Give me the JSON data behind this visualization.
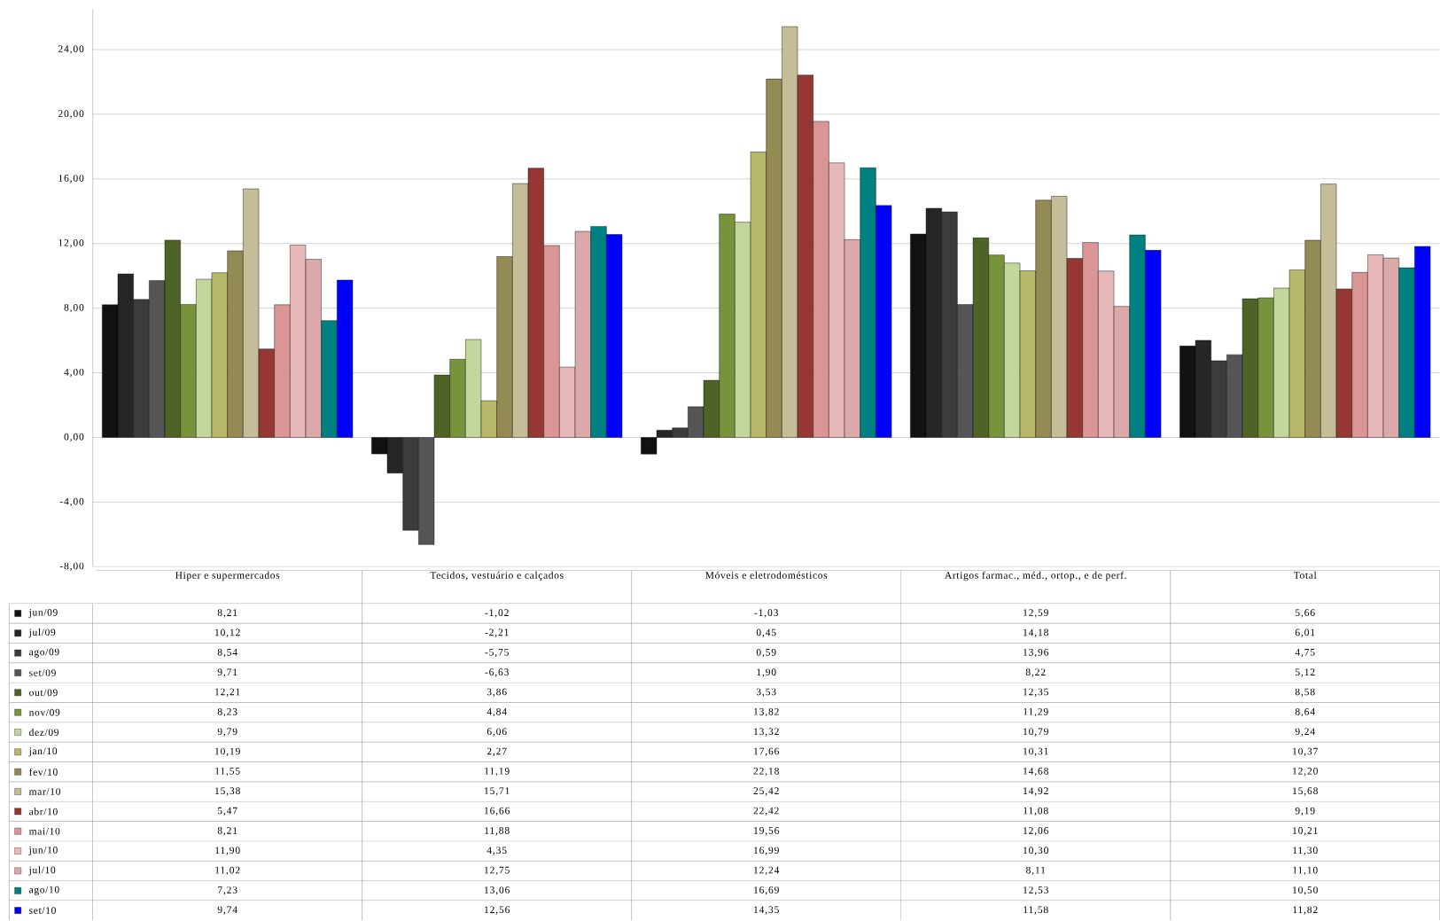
{
  "chart_data": {
    "type": "bar",
    "categories": [
      "Hiper e supermercados",
      "Tecidos, vestuário e calçados",
      "Móveis e eletrodomésticos",
      "Artigos farmac., méd., ortop., e de perf.",
      "Total"
    ],
    "ylim": [
      -8,
      26.5
    ],
    "yticks": [
      {
        "value": -8,
        "label": "-8,00"
      },
      {
        "value": -4,
        "label": "-4,00"
      },
      {
        "value": 0,
        "label": "0,00"
      },
      {
        "value": 4,
        "label": "4,00"
      },
      {
        "value": 8,
        "label": "8,00"
      },
      {
        "value": 12,
        "label": "12,00"
      },
      {
        "value": 16,
        "label": "16,00"
      },
      {
        "value": 20,
        "label": "20,00"
      },
      {
        "value": 24,
        "label": "24,00"
      }
    ],
    "grid": "y",
    "legend": "bottom left",
    "series": [
      {
        "name": "jun/09",
        "color": "#111111",
        "values": [
          8.21,
          -1.02,
          -1.03,
          12.59,
          5.66
        ],
        "value_labels": [
          "8,21",
          "-1,02",
          "-1,03",
          "12,59",
          "5,66"
        ]
      },
      {
        "name": "jul/09",
        "color": "#262626",
        "values": [
          10.12,
          -2.21,
          0.45,
          14.18,
          6.01
        ],
        "value_labels": [
          "10,12",
          "-2,21",
          "0,45",
          "14,18",
          "6,01"
        ]
      },
      {
        "name": "ago/09",
        "color": "#3c3c3c",
        "values": [
          8.54,
          -5.75,
          0.59,
          13.96,
          4.75
        ],
        "value_labels": [
          "8,54",
          "-5,75",
          "0,59",
          "13,96",
          "4,75"
        ]
      },
      {
        "name": "set/09",
        "color": "#555555",
        "values": [
          9.71,
          -6.63,
          1.9,
          8.22,
          5.12
        ],
        "value_labels": [
          "9,71",
          "-6,63",
          "1,90",
          "8,22",
          "5,12"
        ]
      },
      {
        "name": "out/09",
        "color": "#4f6228",
        "values": [
          12.21,
          3.86,
          3.53,
          12.35,
          8.58
        ],
        "value_labels": [
          "12,21",
          "3,86",
          "3,53",
          "12,35",
          "8,58"
        ]
      },
      {
        "name": "nov/09",
        "color": "#77933c",
        "values": [
          8.23,
          4.84,
          13.82,
          11.29,
          8.64
        ],
        "value_labels": [
          "8,23",
          "4,84",
          "13,82",
          "11,29",
          "8,64"
        ]
      },
      {
        "name": "dez/09",
        "color": "#c3d69b",
        "values": [
          9.79,
          6.06,
          13.32,
          10.79,
          9.24
        ],
        "value_labels": [
          "9,79",
          "6,06",
          "13,32",
          "10,79",
          "9,24"
        ]
      },
      {
        "name": "jan/10",
        "color": "#b8b86a",
        "values": [
          10.19,
          2.27,
          17.66,
          10.31,
          10.37
        ],
        "value_labels": [
          "10,19",
          "2,27",
          "17,66",
          "10,31",
          "10,37"
        ]
      },
      {
        "name": "fev/10",
        "color": "#948a54",
        "values": [
          11.55,
          11.19,
          22.18,
          14.68,
          12.2
        ],
        "value_labels": [
          "11,55",
          "11,19",
          "22,18",
          "14,68",
          "12,20"
        ]
      },
      {
        "name": "mar/10",
        "color": "#c4bd97",
        "values": [
          15.38,
          15.71,
          25.42,
          14.92,
          15.68
        ],
        "value_labels": [
          "15,38",
          "15,71",
          "25,42",
          "14,92",
          "15,68"
        ]
      },
      {
        "name": "abr/10",
        "color": "#953735",
        "values": [
          5.47,
          16.66,
          22.42,
          11.08,
          9.19
        ],
        "value_labels": [
          "5,47",
          "16,66",
          "22,42",
          "11,08",
          "9,19"
        ]
      },
      {
        "name": "mai/10",
        "color": "#d99694",
        "values": [
          8.21,
          11.88,
          19.56,
          12.06,
          10.21
        ],
        "value_labels": [
          "8,21",
          "11,88",
          "19,56",
          "12,06",
          "10,21"
        ]
      },
      {
        "name": "jun/10",
        "color": "#e6b9b8",
        "values": [
          11.9,
          4.35,
          16.99,
          10.3,
          11.3
        ],
        "value_labels": [
          "11,90",
          "4,35",
          "16,99",
          "10,30",
          "11,30"
        ]
      },
      {
        "name": "jul/10",
        "color": "#dba9aa",
        "values": [
          11.02,
          12.75,
          12.24,
          8.11,
          11.1
        ],
        "value_labels": [
          "11,02",
          "12,75",
          "12,24",
          "8,11",
          "11,10"
        ]
      },
      {
        "name": "ago/10",
        "color": "#008080",
        "values": [
          7.23,
          13.06,
          16.69,
          12.53,
          10.5
        ],
        "value_labels": [
          "7,23",
          "13,06",
          "16,69",
          "12,53",
          "10,50"
        ]
      },
      {
        "name": "set/10",
        "color": "#0000ff",
        "values": [
          9.74,
          12.56,
          14.35,
          11.58,
          11.82
        ],
        "value_labels": [
          "9,74",
          "12,56",
          "14,35",
          "11,58",
          "11,82"
        ]
      }
    ]
  }
}
